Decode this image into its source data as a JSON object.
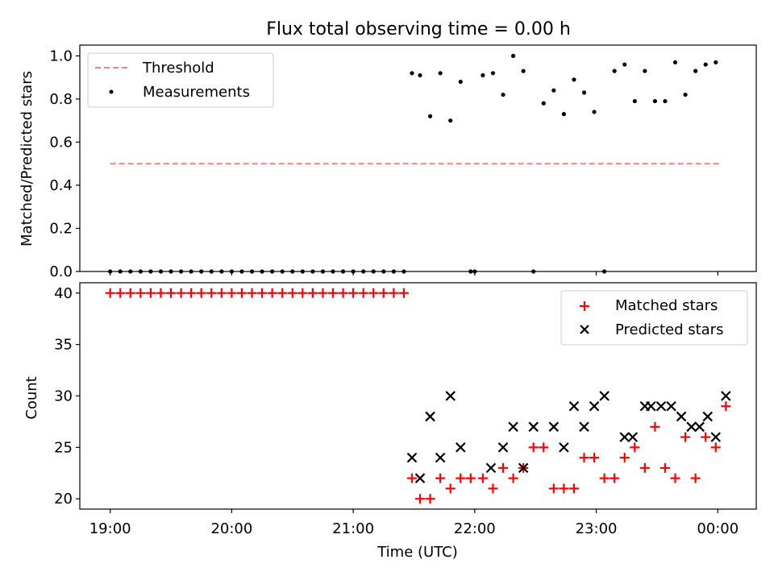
{
  "chart_data": [
    {
      "type": "scatter",
      "title": "Flux total observing time = 0.00 h",
      "xlabel": "",
      "ylabel": "Matched/Predicted stars",
      "xlim": [
        "18:45",
        "00:19"
      ],
      "ylim": [
        0.0,
        1.05
      ],
      "yticks": [
        0.0,
        0.2,
        0.4,
        0.6,
        0.8,
        1.0
      ],
      "ytick_labels": [
        "0.0",
        "0.2",
        "0.4",
        "0.6",
        "0.8",
        "1.0"
      ],
      "xticks": [
        "19:00",
        "20:00",
        "21:00",
        "22:00",
        "23:00",
        "00:00"
      ],
      "grid": false,
      "legend": "upper left",
      "threshold": {
        "name": "Threshold",
        "y": 0.5,
        "x_start": "19:00",
        "x_end": "00:02",
        "color": "#ff7f7f"
      },
      "measurements": {
        "name": "Measurements",
        "color": "#000000",
        "x": [
          "19:00",
          "19:05",
          "19:10",
          "19:15",
          "19:20",
          "19:25",
          "19:30",
          "19:35",
          "19:40",
          "19:45",
          "19:50",
          "19:55",
          "20:00",
          "20:05",
          "20:10",
          "20:15",
          "20:20",
          "20:25",
          "20:30",
          "20:35",
          "20:40",
          "20:45",
          "20:50",
          "20:55",
          "21:00",
          "21:05",
          "21:10",
          "21:15",
          "21:20",
          "21:25",
          "21:29",
          "21:33",
          "21:38",
          "21:43",
          "21:48",
          "21:53",
          "21:58",
          "22:00",
          "22:04",
          "22:09",
          "22:14",
          "22:19",
          "22:24",
          "22:29",
          "22:34",
          "22:39",
          "22:44",
          "22:49",
          "22:54",
          "22:59",
          "23:04",
          "23:09",
          "23:14",
          "23:19",
          "23:24",
          "23:29",
          "23:34",
          "23:39",
          "23:44",
          "23:49",
          "23:54",
          "23:59",
          "00:04"
        ],
        "y": [
          0,
          0,
          0,
          0,
          0,
          0,
          0,
          0,
          0,
          0,
          0,
          0,
          0,
          0,
          0,
          0,
          0,
          0,
          0,
          0,
          0,
          0,
          0,
          0,
          0,
          0,
          0,
          0,
          0,
          0,
          0.92,
          0.91,
          0.72,
          0.92,
          0.7,
          0.88,
          0,
          0,
          0.91,
          0.92,
          0.82,
          1.0,
          0.93,
          0,
          0.78,
          0.84,
          0.73,
          0.89,
          0.83,
          0.74,
          0,
          0.93,
          0.96,
          0.79,
          0.93,
          0.79,
          0.79,
          0.97,
          0.82,
          0.93,
          0.96,
          0.97,
          null
        ]
      }
    },
    {
      "type": "scatter",
      "title": "",
      "xlabel": "Time (UTC)",
      "ylabel": "Count",
      "xlim": [
        "18:45",
        "00:19"
      ],
      "ylim": [
        19,
        41
      ],
      "yticks": [
        20,
        25,
        30,
        35,
        40
      ],
      "ytick_labels": [
        "20",
        "25",
        "30",
        "35",
        "40"
      ],
      "xticks": [
        "19:00",
        "20:00",
        "21:00",
        "22:00",
        "23:00",
        "00:00"
      ],
      "grid": false,
      "legend": "upper right",
      "series": [
        {
          "name": "Matched stars",
          "marker": "plus",
          "color": "#ff0000",
          "x": [
            "19:00",
            "19:05",
            "19:10",
            "19:15",
            "19:20",
            "19:25",
            "19:30",
            "19:35",
            "19:40",
            "19:45",
            "19:50",
            "19:55",
            "20:00",
            "20:05",
            "20:10",
            "20:15",
            "20:20",
            "20:25",
            "20:30",
            "20:35",
            "20:40",
            "20:45",
            "20:50",
            "20:55",
            "21:00",
            "21:05",
            "21:10",
            "21:15",
            "21:20",
            "21:25",
            "21:29",
            "21:33",
            "21:38",
            "21:43",
            "21:48",
            "21:53",
            "21:58",
            "22:04",
            "22:09",
            "22:14",
            "22:19",
            "22:24",
            "22:29",
            "22:34",
            "22:39",
            "22:44",
            "22:49",
            "22:54",
            "22:59",
            "23:04",
            "23:09",
            "23:14",
            "23:19",
            "23:24",
            "23:29",
            "23:34",
            "23:39",
            "23:44",
            "23:49",
            "23:54",
            "23:59",
            "00:04"
          ],
          "y": [
            40,
            40,
            40,
            40,
            40,
            40,
            40,
            40,
            40,
            40,
            40,
            40,
            40,
            40,
            40,
            40,
            40,
            40,
            40,
            40,
            40,
            40,
            40,
            40,
            40,
            40,
            40,
            40,
            40,
            40,
            22,
            20,
            20,
            22,
            21,
            22,
            22,
            22,
            21,
            23,
            22,
            23,
            25,
            25,
            21,
            21,
            21,
            24,
            24,
            22,
            22,
            24,
            25,
            23,
            27,
            23,
            22,
            26,
            22,
            26,
            25,
            29
          ]
        },
        {
          "name": "Predicted stars",
          "marker": "x",
          "color": "#000000",
          "x": [
            "21:29",
            "21:33",
            "21:38",
            "21:43",
            "21:48",
            "21:53",
            "22:08",
            "22:14",
            "22:19",
            "22:24",
            "22:29",
            "22:39",
            "22:44",
            "22:49",
            "22:54",
            "22:59",
            "23:04",
            "23:14",
            "23:18",
            "23:24",
            "23:27",
            "23:32",
            "23:37",
            "23:42",
            "23:47",
            "23:51",
            "23:55",
            "23:59",
            "00:04"
          ],
          "y": [
            24,
            22,
            28,
            24,
            30,
            25,
            23,
            25,
            27,
            23,
            27,
            27,
            25,
            29,
            27,
            29,
            30,
            26,
            26,
            29,
            29,
            29,
            29,
            28,
            27,
            27,
            28,
            26,
            30
          ]
        }
      ]
    }
  ]
}
